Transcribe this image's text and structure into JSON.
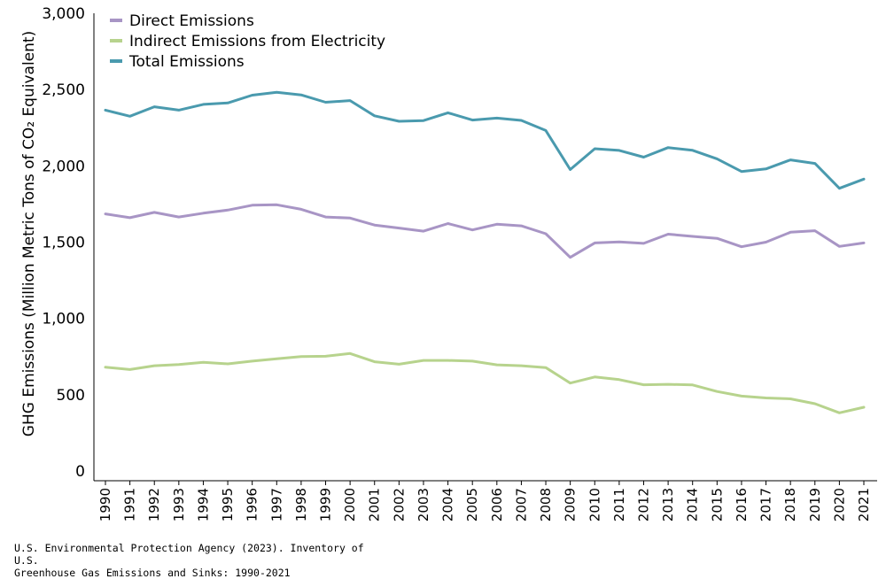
{
  "chart_data": {
    "type": "line",
    "title": "",
    "xlabel": "",
    "ylabel": "GHG Emissions (Million Metric Tons of CO₂ Equivalent)",
    "ylim": [
      0,
      3000
    ],
    "yticks": [
      0,
      500,
      1000,
      1500,
      2000,
      2500,
      3000
    ],
    "ytick_labels": [
      "0",
      "500",
      "1,000",
      "1,500",
      "2,000",
      "2,500",
      "3,000"
    ],
    "legend_position": "top-left",
    "grid": false,
    "x": [
      1990,
      1991,
      1992,
      1993,
      1994,
      1995,
      1996,
      1997,
      1998,
      1999,
      2000,
      2001,
      2002,
      2003,
      2004,
      2005,
      2006,
      2007,
      2008,
      2009,
      2010,
      2011,
      2012,
      2013,
      2014,
      2015,
      2016,
      2017,
      2018,
      2019,
      2020,
      2021
    ],
    "series": [
      {
        "name": "Direct Emissions",
        "color": "#a895c5",
        "values": [
          1685,
          1660,
          1695,
          1665,
          1690,
          1710,
          1742,
          1745,
          1715,
          1665,
          1658,
          1612,
          1592,
          1572,
          1622,
          1580,
          1617,
          1607,
          1555,
          1400,
          1495,
          1502,
          1492,
          1552,
          1538,
          1525,
          1470,
          1500,
          1565,
          1575,
          1472,
          1495
        ]
      },
      {
        "name": "Indirect Emissions from Electricity",
        "color": "#b7d38d",
        "values": [
          680,
          665,
          690,
          698,
          712,
          702,
          720,
          736,
          750,
          752,
          770,
          716,
          700,
          725,
          725,
          720,
          696,
          690,
          678,
          576,
          616,
          599,
          565,
          568,
          564,
          521,
          491,
          479,
          473,
          441,
          381,
          418
        ]
      },
      {
        "name": "Total Emissions",
        "color": "#4a9aae",
        "values": [
          2365,
          2325,
          2387,
          2365,
          2403,
          2412,
          2463,
          2482,
          2465,
          2417,
          2428,
          2328,
          2292,
          2297,
          2348,
          2300,
          2313,
          2298,
          2232,
          1976,
          2112,
          2101,
          2057,
          2120,
          2102,
          2046,
          1963,
          1980,
          2039,
          2016,
          1853,
          1913
        ]
      }
    ]
  },
  "source_text": {
    "line1": "U.S. Environmental Protection Agency (2023). Inventory of U.S.",
    "line2": "Greenhouse Gas Emissions and Sinks: 1990-2021"
  }
}
